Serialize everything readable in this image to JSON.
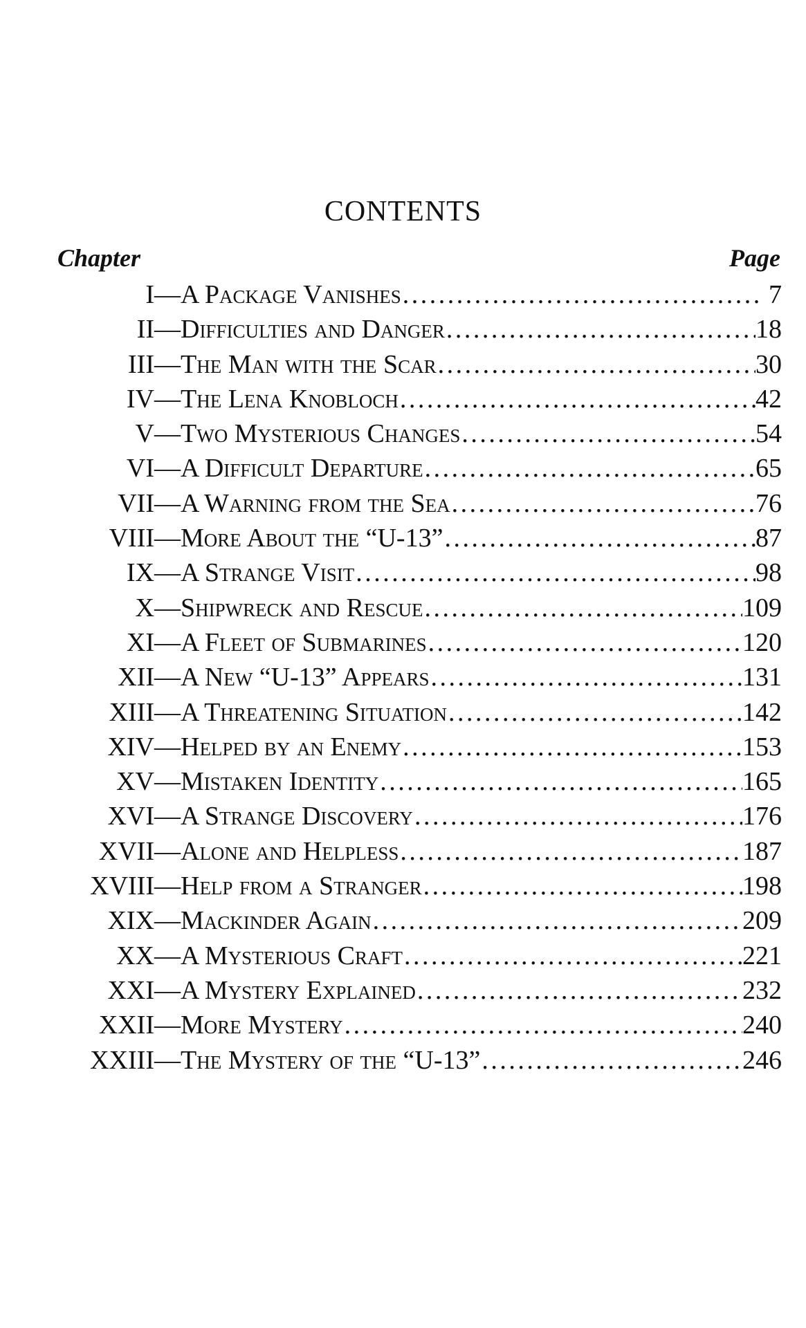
{
  "title": "CONTENTS",
  "header": {
    "chapter_label": "Chapter",
    "page_label": "Page"
  },
  "chapters": [
    {
      "num": "I",
      "title": "A Package Vanishes",
      "page": "7"
    },
    {
      "num": "II",
      "title": "Difficulties and Danger",
      "page": "18"
    },
    {
      "num": "III",
      "title": "The Man with the Scar",
      "page": "30"
    },
    {
      "num": "IV",
      "title": "The Lena Knobloch",
      "page": "42"
    },
    {
      "num": "V",
      "title": "Two Mysterious Changes",
      "page": "54"
    },
    {
      "num": "VI",
      "title": "A Difficult Departure",
      "page": "65"
    },
    {
      "num": "VII",
      "title": "A Warning from the Sea",
      "page": "76"
    },
    {
      "num": "VIII",
      "title": "More About the “U-13”",
      "page": "87"
    },
    {
      "num": "IX",
      "title": "A Strange Visit",
      "page": "98"
    },
    {
      "num": "X",
      "title": "Shipwreck and Rescue",
      "page": "109"
    },
    {
      "num": "XI",
      "title": "A Fleet of Submarines",
      "page": "120"
    },
    {
      "num": "XII",
      "title": "A New “U-13” Appears",
      "page": "131"
    },
    {
      "num": "XIII",
      "title": "A Threatening Situation",
      "page": "142"
    },
    {
      "num": "XIV",
      "title": "Helped by an Enemy",
      "page": "153"
    },
    {
      "num": "XV",
      "title": "Mistaken Identity",
      "page": "165"
    },
    {
      "num": "XVI",
      "title": "A Strange Discovery",
      "page": "176"
    },
    {
      "num": "XVII",
      "title": "Alone and Helpless",
      "page": "187"
    },
    {
      "num": "XVIII",
      "title": "Help from a Stranger",
      "page": "198"
    },
    {
      "num": "XIX",
      "title": "Mackinder Again",
      "page": "209"
    },
    {
      "num": "XX",
      "title": "A Mysterious Craft",
      "page": "221"
    },
    {
      "num": "XXI",
      "title": "A Mystery Explained",
      "page": "232"
    },
    {
      "num": "XXII",
      "title": "More Mystery",
      "page": "240"
    },
    {
      "num": "XXIII",
      "title": "The Mystery of the “U-13”",
      "page": "246"
    }
  ]
}
